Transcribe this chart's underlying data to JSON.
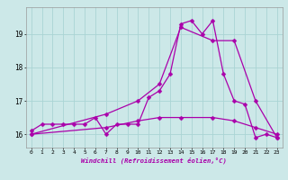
{
  "xlabel": "Windchill (Refroidissement éolien,°C)",
  "background_color": "#cce8e8",
  "grid_color": "#aad4d4",
  "line_color": "#aa00aa",
  "x_ticks": [
    0,
    1,
    2,
    3,
    4,
    5,
    6,
    7,
    8,
    9,
    10,
    11,
    12,
    13,
    14,
    15,
    16,
    17,
    18,
    19,
    20,
    21,
    22,
    23
  ],
  "y_ticks": [
    16,
    17,
    18,
    19
  ],
  "ylim": [
    15.6,
    19.8
  ],
  "xlim": [
    -0.5,
    23.5
  ],
  "series1_x": [
    0,
    1,
    2,
    3,
    4,
    5,
    6,
    7,
    8,
    9,
    10,
    11,
    12,
    13,
    14,
    15,
    16,
    17,
    18,
    19,
    20,
    21,
    22,
    23
  ],
  "series1_y": [
    16.1,
    16.3,
    16.3,
    16.3,
    16.3,
    16.3,
    16.5,
    16.0,
    16.3,
    16.3,
    16.3,
    17.1,
    17.3,
    17.8,
    19.3,
    19.4,
    19.0,
    19.4,
    17.8,
    17.0,
    16.9,
    15.9,
    16.0,
    15.9
  ],
  "series2_x": [
    0,
    7,
    10,
    12,
    14,
    17,
    19,
    21,
    23
  ],
  "series2_y": [
    16.0,
    16.6,
    17.0,
    17.5,
    19.2,
    18.8,
    18.8,
    17.0,
    15.9
  ],
  "series3_x": [
    0,
    7,
    10,
    12,
    14,
    17,
    19,
    21,
    23
  ],
  "series3_y": [
    16.0,
    16.2,
    16.4,
    16.5,
    16.5,
    16.5,
    16.4,
    16.2,
    16.0
  ]
}
